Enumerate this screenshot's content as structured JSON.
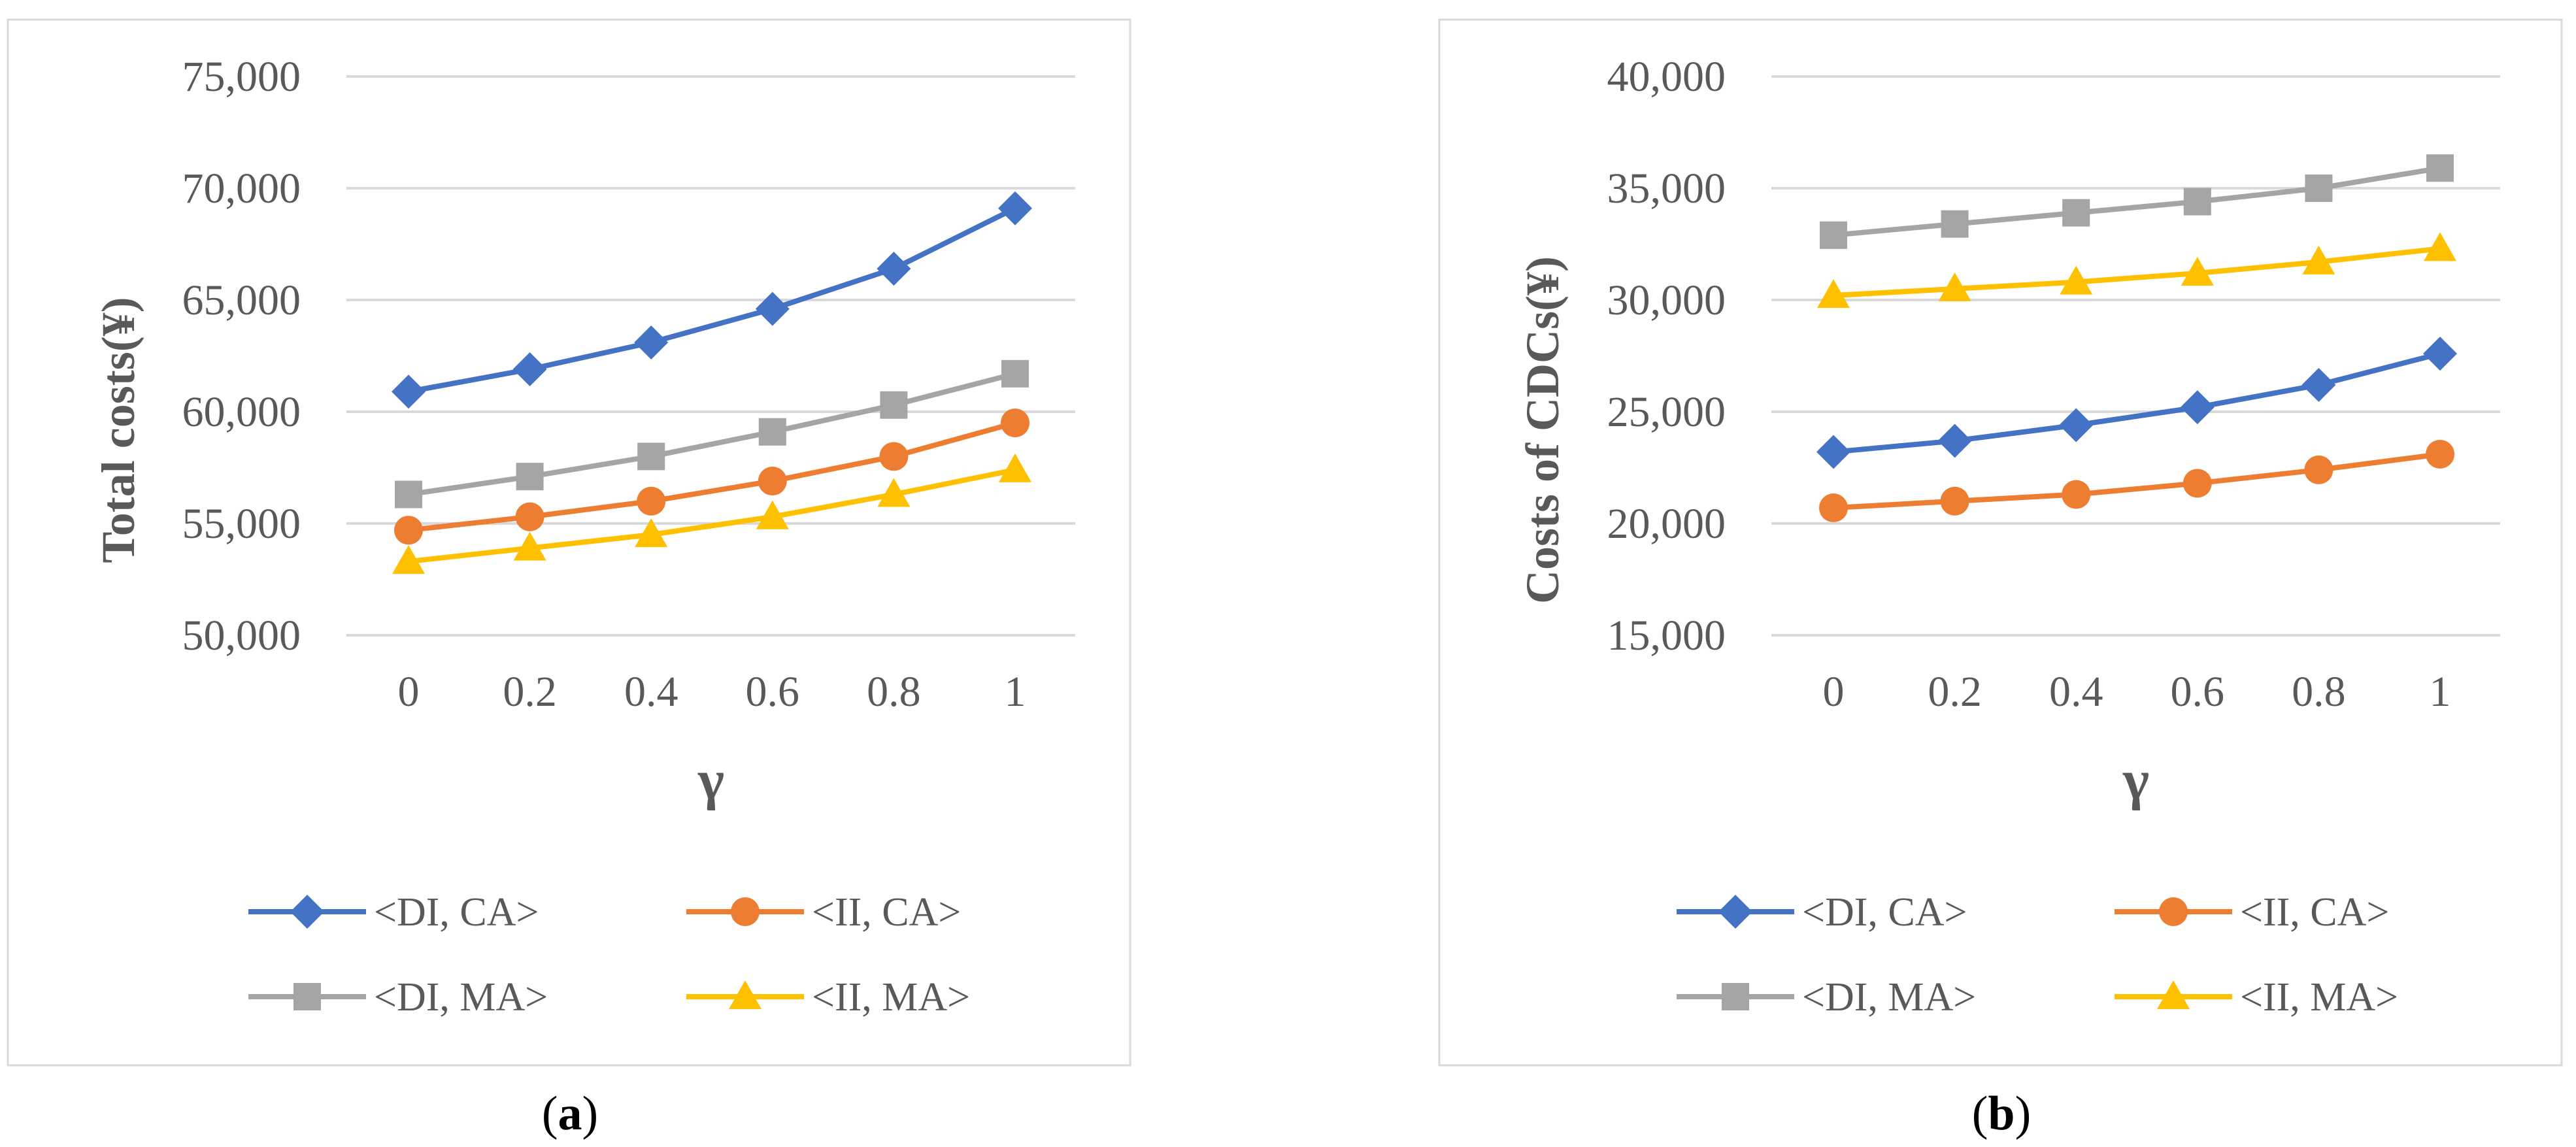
{
  "chart_data": [
    {
      "type": "line",
      "panel": "a",
      "caption_letter": "a",
      "x": [
        "0",
        "0.2",
        "0.4",
        "0.6",
        "0.8",
        "1"
      ],
      "xlabel": "γ",
      "ylabel": "Total costs(¥)",
      "ylim": [
        50000,
        75000
      ],
      "yticks": [
        "50,000",
        "55,000",
        "60,000",
        "65,000",
        "70,000",
        "75,000"
      ],
      "grid": true,
      "legend_position": "bottom",
      "series": [
        {
          "name": "<DI, CA>",
          "color": "#4472C4",
          "marker": "diamond",
          "values": [
            60900,
            61900,
            63100,
            64600,
            66400,
            69100
          ]
        },
        {
          "name": "<II, CA>",
          "color": "#ED7D31",
          "marker": "circle",
          "values": [
            54700,
            55300,
            56000,
            56900,
            58000,
            59500
          ]
        },
        {
          "name": "<DI, MA>",
          "color": "#A5A5A5",
          "marker": "square",
          "values": [
            56300,
            57100,
            58000,
            59100,
            60300,
            61700
          ]
        },
        {
          "name": "<II, MA>",
          "color": "#FFC000",
          "marker": "triangle",
          "values": [
            53300,
            53900,
            54500,
            55300,
            56300,
            57400
          ]
        }
      ]
    },
    {
      "type": "line",
      "panel": "b",
      "caption_letter": "b",
      "x": [
        "0",
        "0.2",
        "0.4",
        "0.6",
        "0.8",
        "1"
      ],
      "xlabel": "γ",
      "ylabel": "Costs of CDCs(¥)",
      "ylim": [
        15000,
        40000
      ],
      "yticks": [
        "15,000",
        "20,000",
        "25,000",
        "30,000",
        "35,000",
        "40,000"
      ],
      "grid": true,
      "legend_position": "bottom",
      "series": [
        {
          "name": "<DI, CA>",
          "color": "#4472C4",
          "marker": "diamond",
          "values": [
            23200,
            23700,
            24400,
            25200,
            26200,
            27600
          ]
        },
        {
          "name": "<II, CA>",
          "color": "#ED7D31",
          "marker": "circle",
          "values": [
            20700,
            21000,
            21300,
            21800,
            22400,
            23100
          ]
        },
        {
          "name": "<DI, MA>",
          "color": "#A5A5A5",
          "marker": "square",
          "values": [
            32900,
            33400,
            33900,
            34400,
            35000,
            35900
          ]
        },
        {
          "name": "<II, MA>",
          "color": "#FFC000",
          "marker": "triangle",
          "values": [
            30200,
            30500,
            30800,
            31200,
            31700,
            32300
          ]
        }
      ]
    }
  ]
}
